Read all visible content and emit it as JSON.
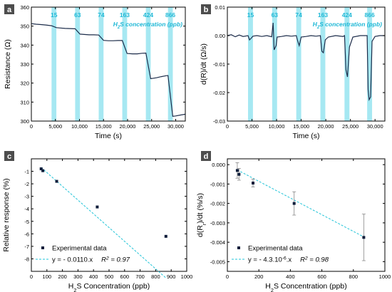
{
  "colors": {
    "band": "#a6e8f2",
    "conc_label": "#1fb8d6",
    "trace": "#1c2c4a",
    "fit": "#21c4d8",
    "marker": "#0e1d3a",
    "axis": "#000000",
    "letter_bg": "#4d4d4d",
    "letter_fg": "#ffffff"
  },
  "chart_data": [
    {
      "panel": "a",
      "type": "line",
      "xlabel": "Time (s)",
      "ylabel": "Resistance (Ω)",
      "xlim": [
        0,
        32000
      ],
      "ylim": [
        300,
        360
      ],
      "xticks": [
        0,
        5000,
        10000,
        15000,
        20000,
        25000,
        30000
      ],
      "xtick_labels": [
        "0",
        "5,000",
        "10,000",
        "15,000",
        "20,000",
        "25,000",
        "30,000"
      ],
      "yticks": [
        300,
        310,
        320,
        330,
        340,
        350,
        360
      ],
      "ytick_labels": [
        "300",
        "310",
        "320",
        "330",
        "340",
        "350",
        "360"
      ],
      "annotation_prefix": "H",
      "annotation_sub": "2",
      "annotation_suffix": "S concentration (ppb)",
      "exposures": [
        {
          "label": "15",
          "start": 4200,
          "end": 5200
        },
        {
          "label": "63",
          "start": 9100,
          "end": 10100
        },
        {
          "label": "74",
          "start": 14000,
          "end": 15000
        },
        {
          "label": "163",
          "start": 18900,
          "end": 19900
        },
        {
          "label": "424",
          "start": 23800,
          "end": 24800
        },
        {
          "label": "866",
          "start": 28400,
          "end": 29400
        }
      ],
      "x": [
        0,
        1000,
        2000,
        3000,
        4200,
        5200,
        6000,
        7000,
        8000,
        9100,
        10100,
        11000,
        12000,
        13000,
        14000,
        15000,
        16000,
        17000,
        18000,
        18900,
        19900,
        21000,
        22000,
        23000,
        23800,
        24800,
        26000,
        27000,
        28000,
        28400,
        29400,
        30000,
        31000,
        32000
      ],
      "y": [
        351.3,
        351.0,
        350.8,
        350.6,
        350.2,
        349.2,
        349.0,
        348.8,
        348.7,
        348.6,
        345.8,
        345.6,
        345.4,
        345.4,
        345.3,
        342.5,
        342.3,
        342.3,
        342.4,
        342.4,
        335.6,
        335.4,
        335.4,
        335.7,
        335.8,
        322.3,
        322.8,
        323.4,
        323.9,
        324.0,
        302.5,
        302.7,
        303.2,
        303.6
      ]
    },
    {
      "panel": "b",
      "type": "line",
      "xlabel": "Time (s)",
      "ylabel": "d(R)/dt (Ω/s)",
      "xlim": [
        0,
        32000
      ],
      "ylim": [
        -0.03,
        0.01
      ],
      "xticks": [
        0,
        5000,
        10000,
        15000,
        20000,
        25000,
        30000
      ],
      "xtick_labels": [
        "0",
        "5,000",
        "10,000",
        "15,000",
        "20,000",
        "25,000",
        "30,000"
      ],
      "yticks": [
        -0.03,
        -0.02,
        -0.01,
        0.0,
        0.01
      ],
      "ytick_labels": [
        "-0.03",
        "-0.02",
        "-0.01",
        "0.00",
        "0.01"
      ],
      "annotation_prefix": "H",
      "annotation_sub": "2",
      "annotation_suffix": "S concentration (ppb)",
      "exposures": [
        {
          "label": "15",
          "start": 4200,
          "end": 5200
        },
        {
          "label": "63",
          "start": 9100,
          "end": 10100
        },
        {
          "label": "74",
          "start": 14000,
          "end": 15000
        },
        {
          "label": "163",
          "start": 18900,
          "end": 19900
        },
        {
          "label": "424",
          "start": 23800,
          "end": 24800
        },
        {
          "label": "866",
          "start": 28400,
          "end": 29400
        }
      ],
      "x": [
        0,
        800,
        1600,
        2400,
        3200,
        4200,
        4500,
        4800,
        5200,
        6000,
        7000,
        8000,
        9000,
        9300,
        9500,
        9900,
        10100,
        11000,
        12000,
        13000,
        14000,
        14300,
        14600,
        15000,
        16000,
        17000,
        18000,
        18900,
        19200,
        19500,
        19900,
        20500,
        22000,
        23500,
        23800,
        24100,
        24400,
        24800,
        25500,
        27000,
        28400,
        28600,
        28800,
        29100,
        29400,
        30000,
        31000,
        32000
      ],
      "y": [
        0.0,
        0.0003,
        -0.0004,
        0.0002,
        -0.0003,
        0.0,
        -0.0015,
        -0.001,
        -0.0002,
        0.0,
        -0.0003,
        0.0,
        -0.0004,
        0.0045,
        -0.005,
        -0.0035,
        -0.0005,
        -0.0003,
        0.0,
        -0.0002,
        0.0,
        -0.002,
        -0.0035,
        -0.0005,
        -0.0003,
        0.0,
        -0.0002,
        0.0,
        -0.0055,
        -0.006,
        -0.0015,
        -0.0005,
        0.0,
        -0.0003,
        0.0,
        -0.012,
        -0.0145,
        -0.004,
        -0.0005,
        0.0,
        0.0,
        -0.019,
        -0.0225,
        -0.0215,
        -0.002,
        -0.0003,
        0.0,
        0.0
      ]
    },
    {
      "panel": "c",
      "type": "scatter",
      "xlabel_prefix": "H",
      "xlabel_sub": "2",
      "xlabel_suffix": "S Concentration (ppb)",
      "ylabel": "Relative response (%)",
      "xlim": [
        0,
        1000
      ],
      "ylim": [
        -9,
        0
      ],
      "xticks": [
        0,
        100,
        200,
        300,
        400,
        500,
        600,
        700,
        800,
        900,
        1000
      ],
      "xtick_labels": [
        "0",
        "100",
        "200",
        "300",
        "400",
        "500",
        "600",
        "700",
        "800",
        "900",
        "1000"
      ],
      "yticks": [
        -9,
        -8,
        -7,
        -6,
        -5,
        -4,
        -3,
        -2,
        -1
      ],
      "ytick_labels": [
        "",
        "-8",
        "-7",
        "-6",
        "-5",
        "-4",
        "-3",
        "-2",
        "-1"
      ],
      "x": [
        63,
        74,
        163,
        424,
        866
      ],
      "y": [
        -0.8,
        -0.95,
        -1.8,
        -3.85,
        -6.2
      ],
      "fit_slope": -0.011,
      "fit_x": [
        63,
        866
      ],
      "legend_marker": "Experimental data",
      "legend_fit": "y = - 0.0110.x",
      "r2_prefix": "R",
      "r2_sup": "2",
      "r2_suffix": " = 0.97"
    },
    {
      "panel": "d",
      "type": "scatter",
      "xlabel_prefix": "H",
      "xlabel_sub": "2",
      "xlabel_suffix": "S Concentration (ppb)",
      "ylabel_prefix": "d(R",
      "ylabel_sub": "r",
      "ylabel_suffix": ")/dt (%/s)",
      "xlim": [
        0,
        1000
      ],
      "ylim": [
        -0.0055,
        0.0003
      ],
      "xticks": [
        0,
        200,
        400,
        600,
        800,
        1000
      ],
      "xtick_labels": [
        "0",
        "200",
        "400",
        "600",
        "800",
        "1000"
      ],
      "yticks": [
        -0.005,
        -0.004,
        -0.003,
        -0.002,
        -0.001,
        0.0
      ],
      "ytick_labels": [
        "-0.005",
        "-0.004",
        "-0.003",
        "-0.002",
        "-0.001",
        "0.000"
      ],
      "x": [
        63,
        74,
        163,
        424,
        866
      ],
      "y": [
        -0.0003,
        -0.0005,
        -0.00095,
        -0.002,
        -0.00375
      ],
      "yerr": [
        0.0004,
        0.0003,
        0.0002,
        0.0006,
        0.0012
      ],
      "fit_slope": -4.3e-06,
      "fit_x": [
        63,
        866
      ],
      "legend_marker": "Experimental data",
      "legend_fit_prefix": "y = - 4.3.10",
      "legend_fit_sup": "-6",
      "legend_fit_suffix": ".x",
      "r2_prefix": "R",
      "r2_sup": "2",
      "r2_suffix": " = 0.98"
    }
  ]
}
